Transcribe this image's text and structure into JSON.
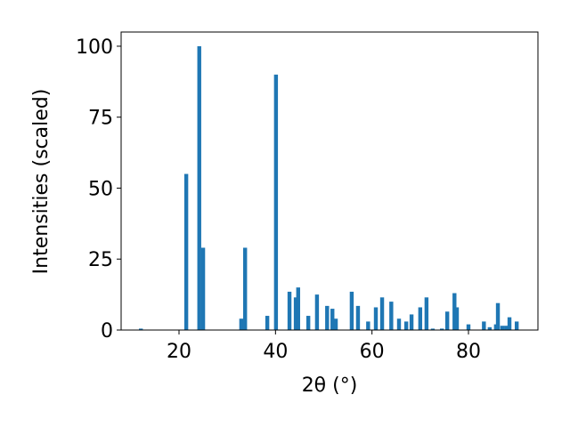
{
  "chart_data": {
    "type": "bar",
    "xlabel": "2θ (°)",
    "ylabel": "Intensities (scaled)",
    "x": [
      12.1,
      21.5,
      24.2,
      25.0,
      32.9,
      33.7,
      38.3,
      40.1,
      42.9,
      44.2,
      44.7,
      46.8,
      48.6,
      50.7,
      51.8,
      52.5,
      55.8,
      57.1,
      59.2,
      60.8,
      62.1,
      64.0,
      65.6,
      67.1,
      68.2,
      70.0,
      71.3,
      72.6,
      74.5,
      75.6,
      77.1,
      77.6,
      80.0,
      83.2,
      84.4,
      85.7,
      86.1,
      87.0,
      87.8,
      88.5,
      90.0
    ],
    "values": [
      0.5,
      55,
      100,
      29,
      4,
      29,
      5,
      90,
      13.5,
      11.5,
      15,
      5,
      12.5,
      8.5,
      7.5,
      4,
      13.5,
      8.5,
      3,
      8,
      11.5,
      10,
      4,
      3,
      5.5,
      8,
      11.5,
      0.5,
      0.5,
      6.5,
      13,
      8,
      2,
      3,
      1,
      2,
      9.5,
      1.5,
      1.5,
      4.5,
      3
    ],
    "color": "#1f77b4",
    "xlim": [
      8,
      94.4
    ],
    "ylim": [
      0,
      105
    ],
    "xticks": [
      20,
      40,
      60,
      80
    ],
    "yticks": [
      0,
      25,
      50,
      75,
      100
    ],
    "grid": false
  }
}
